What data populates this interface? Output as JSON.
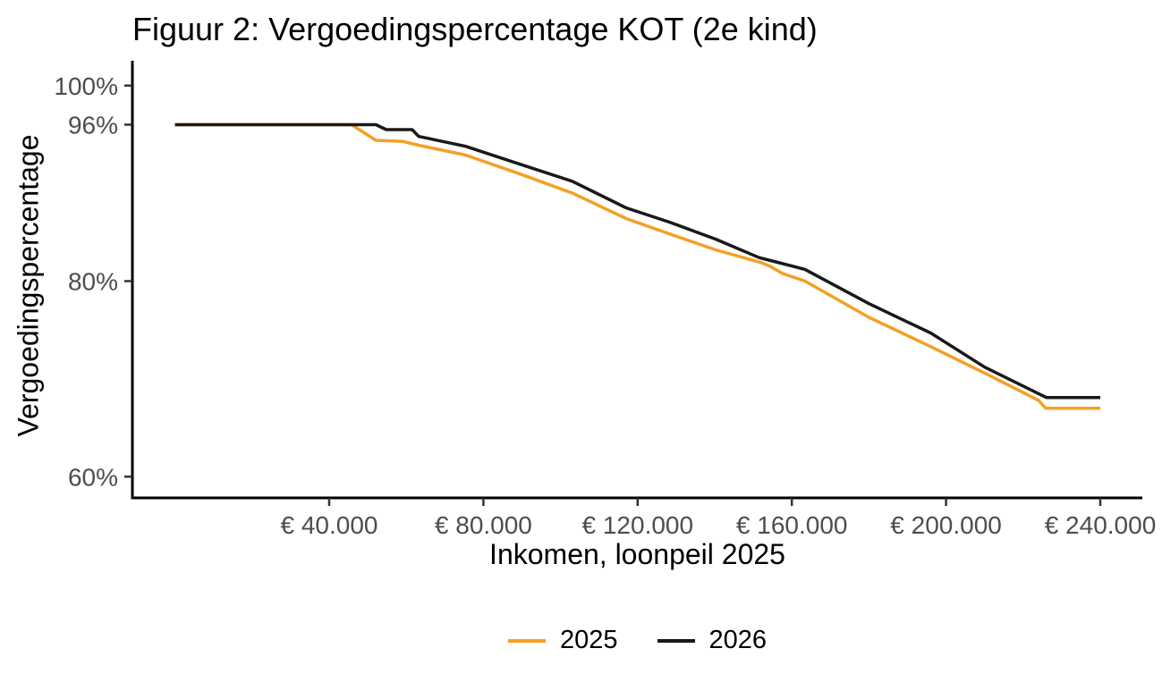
{
  "chart_data": {
    "type": "line",
    "title": "Figuur 2: Vergoedingspercentage KOT (2e kind)",
    "xlabel": "Inkomen, loonpeil 2025",
    "ylabel": "Vergoedingspercentage",
    "xlim": [
      0,
      250000
    ],
    "ylim": [
      58,
      104
    ],
    "grid": false,
    "legend_position": "bottom",
    "x_ticks": [
      {
        "value": 40000,
        "label": "€ 40.000"
      },
      {
        "value": 80000,
        "label": "€ 80.000"
      },
      {
        "value": 120000,
        "label": "€ 120.000"
      },
      {
        "value": 160000,
        "label": "€ 160.000"
      },
      {
        "value": 200000,
        "label": "€ 200.000"
      },
      {
        "value": 240000,
        "label": "€ 240.000"
      }
    ],
    "y_ticks": [
      {
        "value": 100,
        "label": "100%"
      },
      {
        "value": 96,
        "label": "96%"
      },
      {
        "value": 80,
        "label": "80%"
      },
      {
        "value": 60,
        "label": "60%"
      }
    ],
    "series": [
      {
        "name": "2025",
        "color": "#F4A024",
        "points": [
          [
            0,
            96.0
          ],
          [
            45800,
            96.0
          ],
          [
            52100,
            94.4
          ],
          [
            59000,
            94.3
          ],
          [
            63200,
            93.9
          ],
          [
            75300,
            92.9
          ],
          [
            89200,
            91.0
          ],
          [
            103100,
            89.0
          ],
          [
            117000,
            86.4
          ],
          [
            128500,
            84.8
          ],
          [
            140200,
            83.2
          ],
          [
            152000,
            81.9
          ],
          [
            154500,
            81.5
          ],
          [
            157500,
            80.8
          ],
          [
            163400,
            80.0
          ],
          [
            180000,
            76.3
          ],
          [
            196000,
            73.3
          ],
          [
            210000,
            70.6
          ],
          [
            224000,
            67.8
          ],
          [
            225800,
            67.0
          ],
          [
            240000,
            67.0
          ]
        ]
      },
      {
        "name": "2026",
        "color": "#191919",
        "points": [
          [
            0,
            96.0
          ],
          [
            52100,
            96.0
          ],
          [
            54800,
            95.5
          ],
          [
            61500,
            95.5
          ],
          [
            63200,
            94.8
          ],
          [
            75300,
            93.8
          ],
          [
            89200,
            92.0
          ],
          [
            103100,
            90.2
          ],
          [
            117000,
            87.5
          ],
          [
            128500,
            86.0
          ],
          [
            140200,
            84.3
          ],
          [
            151500,
            82.4
          ],
          [
            154500,
            82.1
          ],
          [
            163400,
            81.2
          ],
          [
            180000,
            77.7
          ],
          [
            196000,
            74.7
          ],
          [
            210000,
            71.2
          ],
          [
            226000,
            68.1
          ],
          [
            240000,
            68.1
          ]
        ]
      }
    ],
    "colors": {
      "axis": "#000000",
      "tick": "#333333",
      "tick_label": "#4D4D4D",
      "text": "#000000"
    }
  }
}
